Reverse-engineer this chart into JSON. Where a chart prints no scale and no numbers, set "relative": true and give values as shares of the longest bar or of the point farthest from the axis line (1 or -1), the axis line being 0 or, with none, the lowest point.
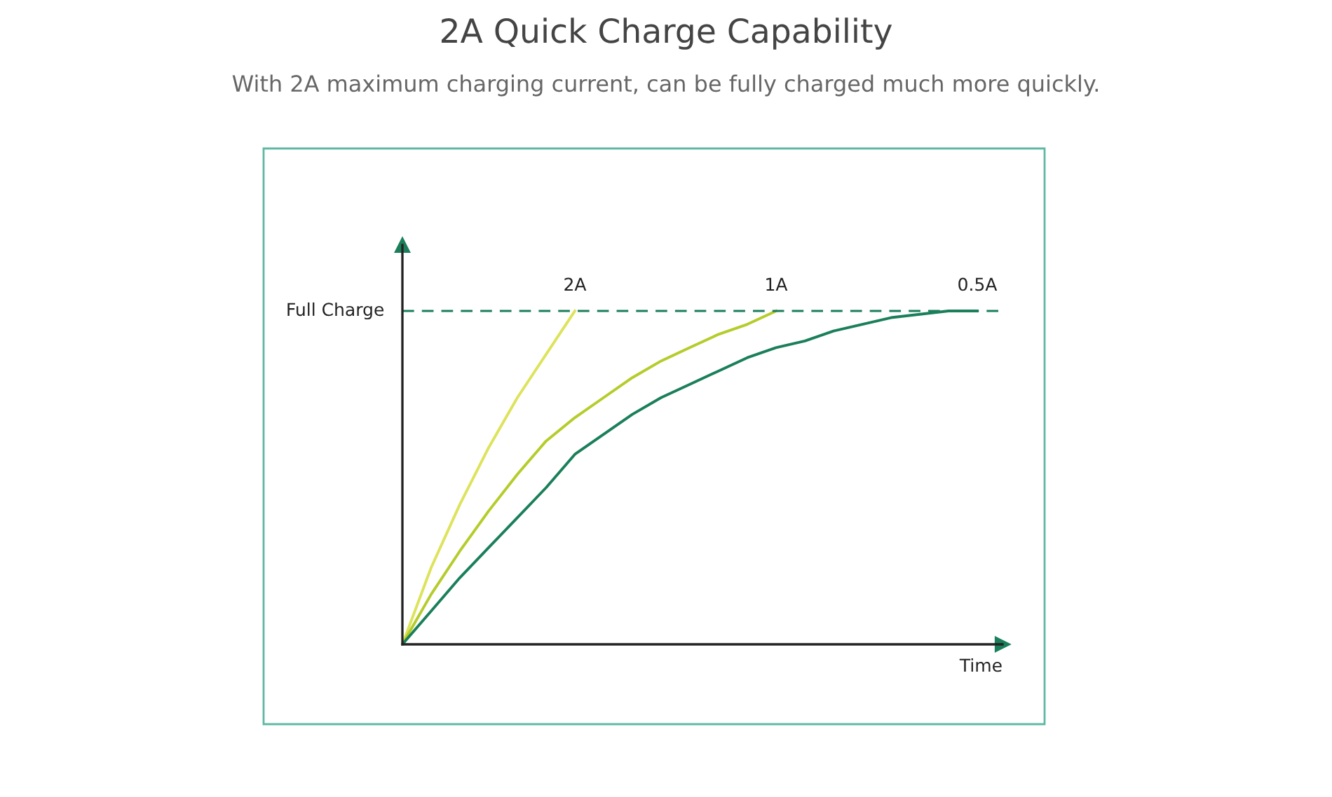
{
  "chart_data": {
    "type": "line",
    "title": "2A Quick Charge Capability",
    "subtitle": "With 2A maximum charging current, can be fully charged much more quickly.",
    "xlabel": "Time",
    "relative": true,
    "legend": false,
    "line_style": "solid",
    "marker": "none",
    "categories": [
      null,
      null,
      null,
      null,
      null,
      null,
      null,
      null,
      null,
      null,
      null,
      null,
      null,
      null,
      null,
      null,
      null,
      null,
      null,
      null,
      null
    ],
    "series": [
      {
        "name": "2A",
        "color": "#dde35a",
        "values": [
          0,
          0.23,
          0.42,
          0.59,
          0.74,
          0.87,
          1.0,
          null,
          null,
          null,
          null,
          null,
          null,
          null,
          null,
          null,
          null,
          null,
          null,
          null,
          null
        ]
      },
      {
        "name": "1A",
        "color": "#b5cc2a",
        "values": [
          0,
          0.15,
          0.28,
          0.4,
          0.51,
          0.61,
          0.68,
          0.74,
          0.8,
          0.85,
          0.89,
          0.93,
          0.96,
          1.0,
          null,
          null,
          null,
          null,
          null,
          null,
          null
        ]
      },
      {
        "name": "0.5A",
        "color": "#1a7f5a",
        "values": [
          0,
          0.1,
          0.2,
          0.29,
          0.38,
          0.47,
          0.57,
          0.63,
          0.69,
          0.74,
          0.78,
          0.82,
          0.86,
          0.89,
          0.91,
          0.94,
          0.96,
          0.98,
          0.99,
          1.0,
          1.0
        ]
      }
    ],
    "ref_lines": [
      {
        "axis": "y",
        "value": 1,
        "label": "Full Charge",
        "color": "#1a7f5a",
        "line_style": "dashed"
      }
    ]
  }
}
